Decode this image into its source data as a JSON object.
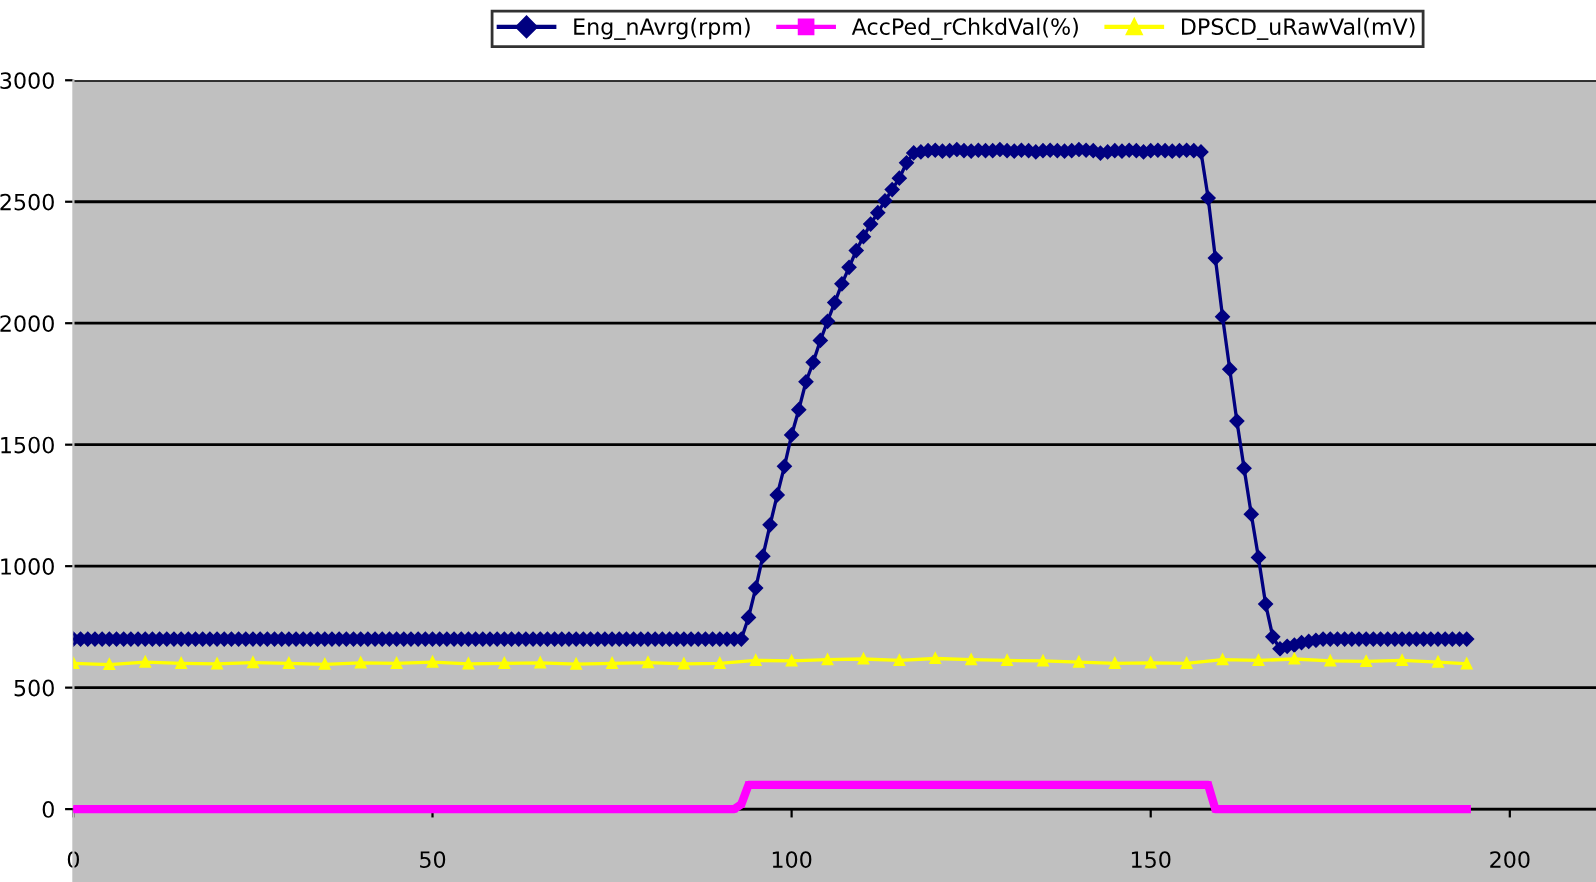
{
  "chart_data": {
    "type": "line",
    "x": [
      0,
      1,
      2,
      3,
      4,
      5,
      6,
      7,
      8,
      9,
      10,
      11,
      12,
      13,
      14,
      15,
      16,
      17,
      18,
      19,
      20,
      21,
      22,
      23,
      24,
      25,
      26,
      27,
      28,
      29,
      30,
      31,
      32,
      33,
      34,
      35,
      36,
      37,
      38,
      39,
      40,
      41,
      42,
      43,
      44,
      45,
      46,
      47,
      48,
      49,
      50,
      51,
      52,
      53,
      54,
      55,
      56,
      57,
      58,
      59,
      60,
      61,
      62,
      63,
      64,
      65,
      66,
      67,
      68,
      69,
      70,
      71,
      72,
      73,
      74,
      75,
      76,
      77,
      78,
      79,
      80,
      81,
      82,
      83,
      84,
      85,
      86,
      87,
      88,
      89,
      90,
      91,
      92,
      93,
      94,
      95,
      96,
      97,
      98,
      99,
      100,
      101,
      102,
      103,
      104,
      105,
      106,
      107,
      108,
      109,
      110,
      111,
      112,
      113,
      114,
      115,
      116,
      117,
      118,
      119,
      120,
      121,
      122,
      123,
      124,
      125,
      126,
      127,
      128,
      129,
      130,
      131,
      132,
      133,
      134,
      135,
      136,
      137,
      138,
      139,
      140,
      141,
      142,
      143,
      144,
      145,
      146,
      147,
      148,
      149,
      150,
      151,
      152,
      153,
      154,
      155,
      156,
      157,
      158,
      159,
      160,
      161,
      162,
      163,
      164,
      165,
      166,
      167,
      168,
      169,
      170,
      171,
      172,
      173,
      174,
      175,
      176,
      177,
      178,
      179,
      180,
      181,
      182,
      183,
      184,
      185,
      186,
      187,
      188,
      189,
      190,
      191,
      192,
      193,
      194
    ],
    "series": [
      {
        "name": "Eng_nAvrg(rpm)",
        "color": "#000080",
        "marker": "diamond",
        "values": [
          700,
          700,
          700,
          700,
          700,
          700,
          700,
          700,
          700,
          700,
          700,
          700,
          700,
          700,
          700,
          700,
          700,
          700,
          700,
          700,
          700,
          700,
          700,
          700,
          700,
          700,
          700,
          700,
          700,
          700,
          700,
          700,
          700,
          700,
          700,
          700,
          700,
          700,
          700,
          700,
          700,
          700,
          700,
          700,
          700,
          700,
          700,
          700,
          700,
          700,
          700,
          700,
          700,
          700,
          700,
          700,
          700,
          700,
          700,
          700,
          700,
          700,
          700,
          700,
          700,
          700,
          700,
          700,
          700,
          700,
          700,
          700,
          700,
          700,
          700,
          700,
          700,
          700,
          700,
          700,
          700,
          700,
          700,
          700,
          700,
          700,
          700,
          700,
          700,
          700,
          700,
          700,
          700,
          700,
          789,
          910,
          1041,
          1170,
          1293,
          1411,
          1540,
          1644,
          1759,
          1839,
          1929,
          2008,
          2085,
          2162,
          2230,
          2299,
          2356,
          2408,
          2455,
          2504,
          2550,
          2597,
          2660,
          2701,
          2705,
          2710,
          2712,
          2708,
          2710,
          2715,
          2710,
          2708,
          2712,
          2710,
          2710,
          2715,
          2710,
          2708,
          2712,
          2710,
          2705,
          2710,
          2712,
          2710,
          2708,
          2710,
          2715,
          2712,
          2710,
          2700,
          2705,
          2710,
          2708,
          2712,
          2710,
          2705,
          2710,
          2712,
          2710,
          2708,
          2710,
          2712,
          2710,
          2705,
          2515,
          2268,
          2027,
          1811,
          1597,
          1403,
          1214,
          1036,
          844,
          709,
          660,
          670,
          675,
          685,
          690,
          695,
          700,
          700,
          700,
          700,
          700,
          700,
          700,
          700,
          700,
          700,
          700,
          700,
          700,
          700,
          700,
          700,
          700,
          700,
          700,
          700,
          700
        ]
      },
      {
        "name": "AccPed_rChkdVal(%)",
        "color": "#ff00ff",
        "marker": "square",
        "values": [
          0,
          0,
          0,
          0,
          0,
          0,
          0,
          0,
          0,
          0,
          0,
          0,
          0,
          0,
          0,
          0,
          0,
          0,
          0,
          0,
          0,
          0,
          0,
          0,
          0,
          0,
          0,
          0,
          0,
          0,
          0,
          0,
          0,
          0,
          0,
          0,
          0,
          0,
          0,
          0,
          0,
          0,
          0,
          0,
          0,
          0,
          0,
          0,
          0,
          0,
          0,
          0,
          0,
          0,
          0,
          0,
          0,
          0,
          0,
          0,
          0,
          0,
          0,
          0,
          0,
          0,
          0,
          0,
          0,
          0,
          0,
          0,
          0,
          0,
          0,
          0,
          0,
          0,
          0,
          0,
          0,
          0,
          0,
          0,
          0,
          0,
          0,
          0,
          0,
          0,
          0,
          0,
          0,
          20,
          100,
          100,
          100,
          100,
          100,
          100,
          100,
          100,
          100,
          100,
          100,
          100,
          100,
          100,
          100,
          100,
          100,
          100,
          100,
          100,
          100,
          100,
          100,
          100,
          100,
          100,
          100,
          100,
          100,
          100,
          100,
          100,
          100,
          100,
          100,
          100,
          100,
          100,
          100,
          100,
          100,
          100,
          100,
          100,
          100,
          100,
          100,
          100,
          100,
          100,
          100,
          100,
          100,
          100,
          100,
          100,
          100,
          100,
          100,
          100,
          100,
          100,
          100,
          100,
          100,
          0,
          0,
          0,
          0,
          0,
          0,
          0,
          0,
          0,
          0,
          0,
          0,
          0,
          0,
          0,
          0,
          0,
          0,
          0,
          0,
          0,
          0,
          0,
          0,
          0,
          0,
          0,
          0,
          0,
          0,
          0,
          0,
          0,
          0,
          0,
          0
        ]
      },
      {
        "name": "DPSCD_uRawVal(mV)",
        "color": "#ffff00",
        "marker": "triangle",
        "x": [
          0,
          5,
          10,
          15,
          20,
          25,
          30,
          35,
          40,
          45,
          50,
          55,
          60,
          65,
          70,
          75,
          80,
          85,
          90,
          95,
          100,
          105,
          110,
          115,
          120,
          125,
          130,
          135,
          140,
          145,
          150,
          155,
          160,
          165,
          170,
          175,
          180,
          185,
          190,
          194
        ],
        "values": [
          600,
          595,
          605,
          600,
          598,
          603,
          600,
          596,
          602,
          600,
          605,
          598,
          600,
          602,
          597,
          600,
          603,
          598,
          600,
          612,
          610,
          615,
          618,
          612,
          620,
          615,
          612,
          610,
          605,
          600,
          602,
          600,
          615,
          612,
          618,
          610,
          608,
          612,
          605,
          598
        ]
      }
    ],
    "xlim": [
      0,
      212
    ],
    "xticks": [
      0,
      50,
      100,
      150,
      200
    ],
    "ylim": [
      -300,
      3000
    ],
    "yticks": [
      0,
      500,
      1000,
      1500,
      2000,
      2500,
      3000
    ],
    "grid": "y",
    "legend": "top"
  }
}
